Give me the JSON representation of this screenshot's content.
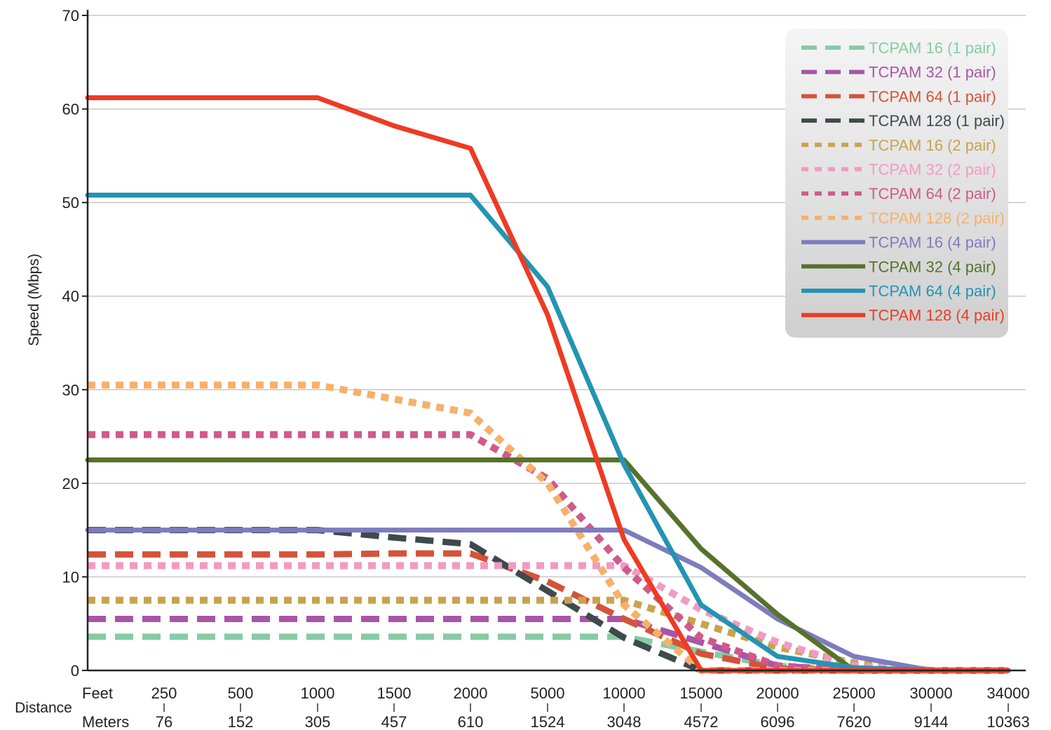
{
  "chart_data": {
    "type": "line",
    "ylabel": "Speed (Mbps)",
    "xlabel": "Distance",
    "ylim": [
      0,
      70
    ],
    "yticks": [
      "0",
      "10",
      "20",
      "30",
      "40",
      "50",
      "60",
      "70"
    ],
    "x_rows": [
      {
        "label": "Feet",
        "ticks": [
          "250",
          "500",
          "1000",
          "1500",
          "2000",
          "5000",
          "10000",
          "15000",
          "20000",
          "25000",
          "30000",
          "34000"
        ]
      },
      {
        "label": "Meters",
        "ticks": [
          "76",
          "152",
          "305",
          "457",
          "610",
          "1524",
          "3048",
          "4572",
          "6096",
          "7620",
          "9144",
          "10363"
        ]
      }
    ],
    "x_categories": [
      "0",
      "250",
      "500",
      "1000",
      "1500",
      "2000",
      "5000",
      "10000",
      "15000",
      "20000",
      "25000",
      "30000",
      "34000"
    ],
    "grid": "horizontal",
    "legend_position": "top-right",
    "series": [
      {
        "name": "TCPAM 16 (1 pair)",
        "color": "#86cba4",
        "style": "dashed",
        "values": [
          3.6,
          3.6,
          3.6,
          3.6,
          3.6,
          3.6,
          3.6,
          3.6,
          2.0,
          0.5,
          0,
          0,
          0
        ]
      },
      {
        "name": "TCPAM 32 (1 pair)",
        "color": "#a855a9",
        "style": "dashed",
        "values": [
          5.5,
          5.5,
          5.5,
          5.5,
          5.5,
          5.5,
          5.5,
          5.5,
          3.0,
          0.5,
          0,
          0,
          0
        ]
      },
      {
        "name": "TCPAM 64 (1 pair)",
        "color": "#d4533a",
        "style": "dashed",
        "values": [
          12.4,
          12.4,
          12.4,
          12.4,
          12.5,
          12.5,
          9.5,
          5.5,
          1.8,
          0.2,
          0,
          0,
          0
        ]
      },
      {
        "name": "TCPAM 128 (1 pair)",
        "color": "#3e4a4b",
        "style": "dashed",
        "values": [
          15.0,
          15.0,
          15.0,
          15.0,
          14.2,
          13.5,
          8.5,
          3.5,
          0,
          0,
          0,
          0,
          0
        ]
      },
      {
        "name": "TCPAM 16 (2 pair)",
        "color": "#c9a24e",
        "style": "dotted",
        "values": [
          7.5,
          7.5,
          7.5,
          7.5,
          7.5,
          7.5,
          7.5,
          7.5,
          5.0,
          2.5,
          0.8,
          0,
          0
        ]
      },
      {
        "name": "TCPAM 32 (2 pair)",
        "color": "#f19ac3",
        "style": "dotted",
        "values": [
          11.2,
          11.2,
          11.2,
          11.2,
          11.2,
          11.2,
          11.2,
          11.2,
          6.5,
          3.0,
          0.5,
          0,
          0
        ]
      },
      {
        "name": "TCPAM 64 (2 pair)",
        "color": "#cf5a8b",
        "style": "dotted",
        "values": [
          25.2,
          25.2,
          25.2,
          25.2,
          25.2,
          25.2,
          20.5,
          11.0,
          3.5,
          0.5,
          0,
          0,
          0
        ]
      },
      {
        "name": "TCPAM 128 (2 pair)",
        "color": "#f6b06a",
        "style": "dotted",
        "values": [
          30.5,
          30.5,
          30.5,
          30.5,
          29.0,
          27.5,
          20.0,
          7.0,
          0,
          0,
          0,
          0,
          0
        ]
      },
      {
        "name": "TCPAM 16 (4 pair)",
        "color": "#7e7bbf",
        "style": "solid",
        "values": [
          15.0,
          15.0,
          15.0,
          15.0,
          15.0,
          15.0,
          15.0,
          15.0,
          11.0,
          5.5,
          1.5,
          0,
          0
        ]
      },
      {
        "name": "TCPAM 32 (4 pair)",
        "color": "#56722c",
        "style": "solid",
        "values": [
          22.5,
          22.5,
          22.5,
          22.5,
          22.5,
          22.5,
          22.5,
          22.5,
          13.0,
          6.0,
          0,
          0,
          0
        ]
      },
      {
        "name": "TCPAM 64 (4 pair)",
        "color": "#2394b1",
        "style": "solid",
        "values": [
          50.8,
          50.8,
          50.8,
          50.8,
          50.8,
          50.8,
          41.0,
          22.0,
          7.0,
          1.5,
          0.3,
          0,
          0
        ]
      },
      {
        "name": "TCPAM 128 (4 pair)",
        "color": "#ee3b24",
        "style": "solid",
        "values": [
          61.2,
          61.2,
          61.2,
          61.2,
          58.2,
          55.8,
          38.0,
          14.0,
          0,
          0,
          0,
          0,
          0
        ]
      }
    ]
  }
}
